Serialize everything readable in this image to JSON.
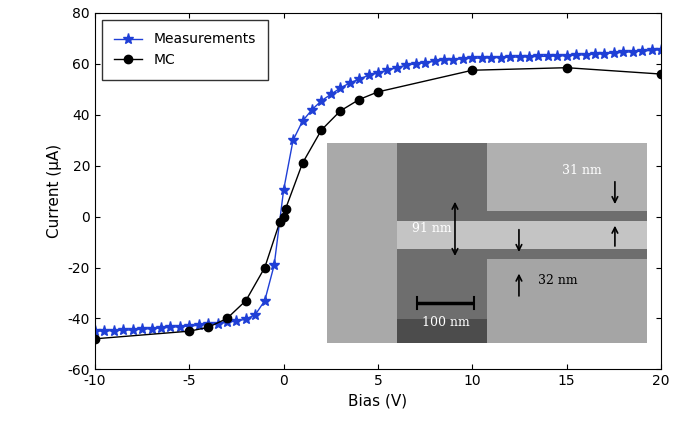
{
  "chart_data": {
    "type": "line",
    "x_label": "Bias (V)",
    "y_label": "Current (μA)",
    "xlim": [
      -10,
      20
    ],
    "xticks": [
      -10,
      -5,
      0,
      5,
      10,
      15,
      20
    ],
    "ylim": [
      -60,
      80
    ],
    "yticks": [
      -60,
      -40,
      -20,
      0,
      20,
      40,
      60,
      80
    ],
    "grid": false,
    "legend": "upper left",
    "series": [
      {
        "name": "Measurements",
        "color": "#1f3fd6",
        "marker": "star",
        "line_style": "solid",
        "x": [
          -10,
          -9.5,
          -9,
          -8.5,
          -8,
          -7.5,
          -7,
          -6.5,
          -6,
          -5.5,
          -5,
          -4.5,
          -4,
          -3.5,
          -3,
          -2.5,
          -2,
          -1.5,
          -1,
          -0.5,
          0,
          0.5,
          1,
          1.5,
          2,
          2.5,
          3,
          3.5,
          4,
          4.5,
          5,
          5.5,
          6,
          6.5,
          7,
          7.5,
          8,
          8.5,
          9,
          9.5,
          10,
          10.5,
          11,
          11.5,
          12,
          12.5,
          13,
          13.5,
          14,
          14.5,
          15,
          15.5,
          16,
          16.5,
          17,
          17.5,
          18,
          18.5,
          19,
          19.5,
          20
        ],
        "values": [
          -45.0,
          -44.9,
          -44.8,
          -44.6,
          -44.5,
          -44.2,
          -44.0,
          -43.7,
          -43.5,
          -43.2,
          -43.0,
          -42.7,
          -42.3,
          -42.0,
          -41.5,
          -41.0,
          -40.3,
          -38.5,
          -33,
          -19,
          10.5,
          30,
          37.5,
          42,
          45.5,
          48,
          50.5,
          52.5,
          54,
          55.5,
          56.5,
          57.5,
          58.5,
          59.5,
          60,
          60.5,
          61,
          61.5,
          61.7,
          62,
          62.2,
          62.3,
          62.4,
          62.5,
          62.6,
          62.7,
          62.8,
          62.9,
          63,
          63.1,
          63.2,
          63.4,
          63.6,
          63.8,
          64,
          64.3,
          64.5,
          64.8,
          65,
          65.3,
          65.6
        ]
      },
      {
        "name": "MC",
        "color": "#000000",
        "marker": "circle",
        "line_style": "solid",
        "x": [
          -10,
          -5,
          -4,
          -3,
          -2,
          -1,
          -0.2,
          0,
          0.1,
          1,
          2,
          3,
          4,
          5,
          10,
          15,
          20
        ],
        "values": [
          -48,
          -45,
          -43.5,
          -40,
          -33,
          -20,
          -2,
          0,
          3,
          21,
          34,
          41.5,
          46,
          49,
          57.5,
          58.5,
          56
        ]
      }
    ],
    "annotations": [
      "91 nm",
      "31 nm",
      "32 nm",
      "100 nm"
    ]
  }
}
